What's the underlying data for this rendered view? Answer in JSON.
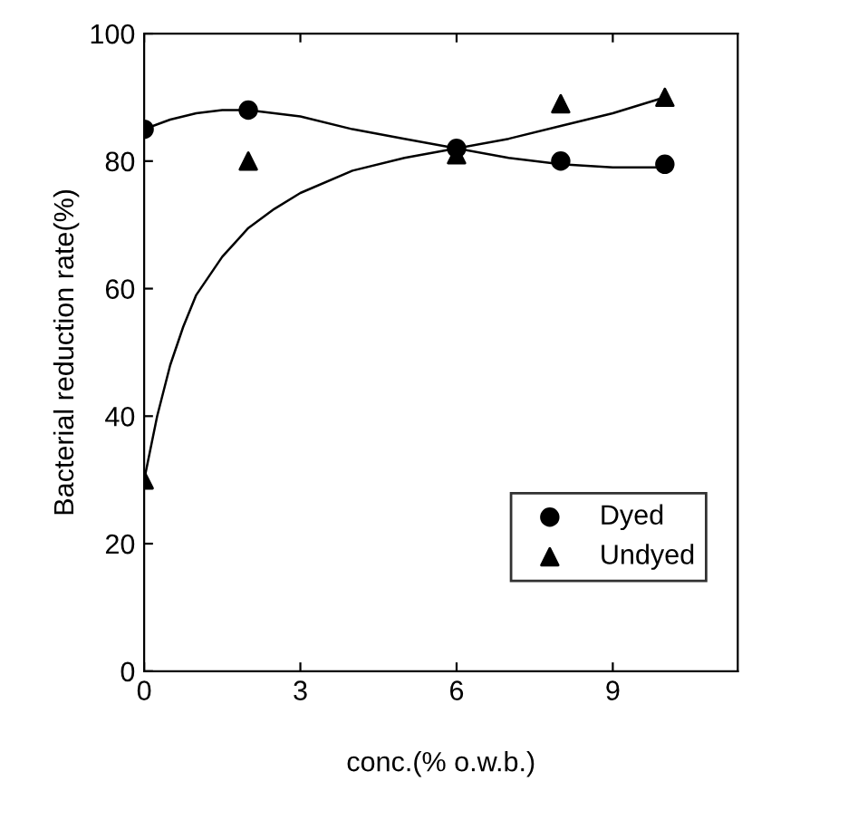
{
  "chart_data": {
    "type": "scatter",
    "xlabel": "conc.(% o.w.b.)",
    "ylabel": "Bacterial reduction rate(%)",
    "xlim": [
      0,
      11.4
    ],
    "xticks": [
      0,
      3,
      6,
      9
    ],
    "ylim": [
      0,
      100
    ],
    "yticks": [
      0,
      20,
      40,
      60,
      80,
      100
    ],
    "grid": false,
    "legend": "bottom right",
    "series": [
      {
        "name": "Dyed",
        "color": "#000000",
        "marker": "circle",
        "x": [
          0,
          2,
          6,
          8,
          10
        ],
        "values": [
          85,
          88,
          82,
          80,
          79.5
        ]
      },
      {
        "name": "Undyed",
        "color": "#000000",
        "marker": "triangle",
        "x": [
          0,
          2,
          6,
          8,
          10
        ],
        "values": [
          30,
          80,
          81,
          89,
          90
        ]
      },
      {
        "type": "line",
        "color": "#000000",
        "marker": "none",
        "x": [
          0,
          0.5,
          1,
          1.5,
          2,
          3,
          4,
          5,
          6,
          7,
          8,
          9,
          10
        ],
        "values": [
          85,
          86.5,
          87.5,
          88,
          88,
          87,
          85,
          83.5,
          82,
          80.5,
          79.5,
          79,
          79
        ]
      },
      {
        "type": "line",
        "color": "#000000",
        "marker": "none",
        "x": [
          0,
          0.25,
          0.5,
          0.75,
          1,
          1.5,
          2,
          2.5,
          3,
          4,
          5,
          6,
          7,
          8,
          9,
          10
        ],
        "values": [
          30,
          40,
          48,
          54,
          59,
          65,
          69.5,
          72.5,
          75,
          78.5,
          80.5,
          82,
          83.5,
          85.5,
          87.5,
          90
        ]
      }
    ]
  }
}
